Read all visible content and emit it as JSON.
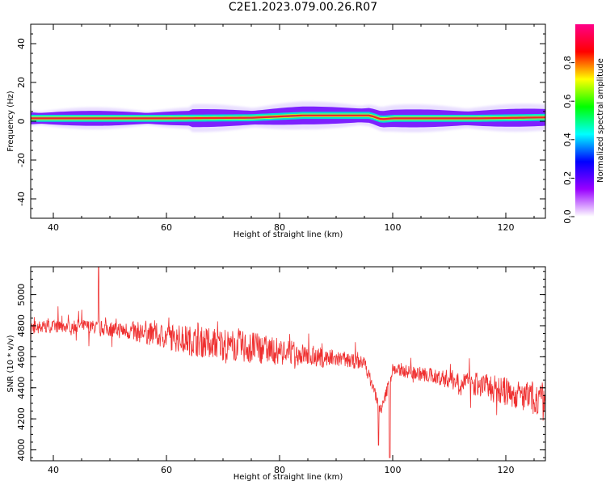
{
  "title": "C2E1.2023.079.00.26.R07",
  "chart_data": [
    {
      "type": "heatmap",
      "xlabel": "Height of straight line (km)",
      "ylabel": "Frequency (Hz)",
      "xlim": [
        36,
        127
      ],
      "ylim": [
        -50,
        50
      ],
      "x_ticks": [
        40,
        60,
        80,
        100,
        120
      ],
      "y_ticks": [
        -40,
        -20,
        0,
        20,
        40
      ],
      "band_center_hz": [
        {
          "x": 36,
          "y": 1.5
        },
        {
          "x": 60,
          "y": 1.5
        },
        {
          "x": 75,
          "y": 1.8
        },
        {
          "x": 84,
          "y": 3.0
        },
        {
          "x": 90,
          "y": 3.0
        },
        {
          "x": 96,
          "y": 3.0
        },
        {
          "x": 98,
          "y": 1.0
        },
        {
          "x": 100,
          "y": 1.5
        },
        {
          "x": 115,
          "y": 1.5
        },
        {
          "x": 127,
          "y": 2.0
        }
      ],
      "colorbar": {
        "label": "Normalized spectral amplitude",
        "range": [
          0,
          1
        ],
        "ticks": [
          0.0,
          0.2,
          0.4,
          0.6,
          0.8
        ],
        "colors": [
          "#ffffff",
          "#9900ff",
          "#0000ff",
          "#00ffff",
          "#00ff00",
          "#ffff00",
          "#ff0000",
          "#ff0088"
        ]
      }
    },
    {
      "type": "line",
      "xlabel": "Height of straight line (km)",
      "ylabel": "SNR (10 * v/v)",
      "xlim": [
        36,
        127
      ],
      "ylim": [
        3930,
        5180
      ],
      "x_ticks": [
        40,
        60,
        80,
        100,
        120
      ],
      "y_ticks": [
        4000,
        4200,
        4400,
        4600,
        4800,
        5000
      ],
      "line_color": "#ef3030",
      "trend": [
        {
          "x": 36,
          "y": 4790
        },
        {
          "x": 45,
          "y": 4800
        },
        {
          "x": 55,
          "y": 4760
        },
        {
          "x": 65,
          "y": 4700
        },
        {
          "x": 75,
          "y": 4660
        },
        {
          "x": 85,
          "y": 4610
        },
        {
          "x": 95,
          "y": 4560
        },
        {
          "x": 98,
          "y": 4250
        },
        {
          "x": 100,
          "y": 4520
        },
        {
          "x": 105,
          "y": 4490
        },
        {
          "x": 115,
          "y": 4420
        },
        {
          "x": 127,
          "y": 4310
        }
      ],
      "extremes": [
        {
          "x": 48,
          "y": 5180
        },
        {
          "x": 97.5,
          "y": 4030
        },
        {
          "x": 99.5,
          "y": 3950
        }
      ]
    }
  ]
}
